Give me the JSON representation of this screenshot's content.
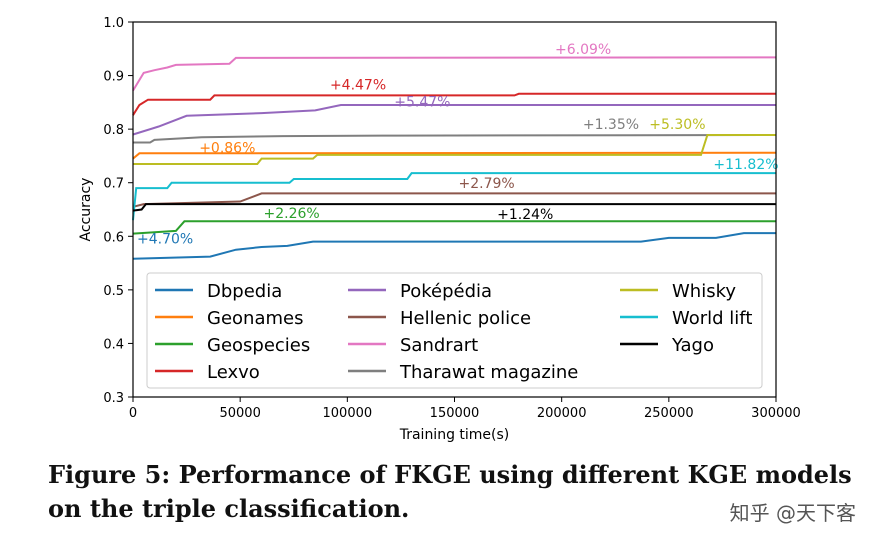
{
  "chart_data": {
    "type": "line",
    "title": "",
    "xlabel": "Training time(s)",
    "ylabel": "Accuracy",
    "xlim": [
      0,
      300000
    ],
    "ylim": [
      0.3,
      1.0
    ],
    "xticks": [
      0,
      50000,
      100000,
      150000,
      200000,
      250000,
      300000
    ],
    "yticks": [
      0.3,
      0.4,
      0.5,
      0.6,
      0.7,
      0.8,
      0.9,
      1.0
    ],
    "grid": false,
    "legend_placement": "lower-center",
    "series": [
      {
        "name": "Dbpedia",
        "color": "#1f77b4",
        "x": [
          0,
          36000,
          48000,
          60000,
          72000,
          84000,
          237000,
          250000,
          272000,
          285000,
          300000
        ],
        "y": [
          0.558,
          0.562,
          0.575,
          0.58,
          0.582,
          0.59,
          0.59,
          0.597,
          0.597,
          0.606,
          0.606
        ]
      },
      {
        "name": "Geonames",
        "color": "#ff7f0e",
        "x": [
          0,
          3000,
          300000
        ],
        "y": [
          0.745,
          0.755,
          0.756
        ]
      },
      {
        "name": "Geospecies",
        "color": "#2ca02c",
        "x": [
          0,
          20000,
          24000,
          300000
        ],
        "y": [
          0.605,
          0.61,
          0.628,
          0.628
        ]
      },
      {
        "name": "Lexvo",
        "color": "#d62728",
        "x": [
          0,
          3000,
          7000,
          36000,
          38000,
          178000,
          180000,
          300000
        ],
        "y": [
          0.826,
          0.845,
          0.855,
          0.855,
          0.863,
          0.863,
          0.866,
          0.866
        ]
      },
      {
        "name": "Poképédia",
        "color": "#9467bd",
        "x": [
          0,
          12000,
          25000,
          60000,
          85000,
          97000,
          300000
        ],
        "y": [
          0.79,
          0.805,
          0.825,
          0.83,
          0.835,
          0.845,
          0.845
        ]
      },
      {
        "name": "Hellenic police",
        "color": "#8c564b",
        "x": [
          0,
          5000,
          50000,
          60000,
          300000
        ],
        "y": [
          0.655,
          0.66,
          0.665,
          0.68,
          0.68
        ]
      },
      {
        "name": "Sandrart",
        "color": "#e377c2",
        "x": [
          0,
          5000,
          10000,
          16000,
          20000,
          45000,
          48000,
          300000
        ],
        "y": [
          0.872,
          0.905,
          0.91,
          0.915,
          0.92,
          0.922,
          0.933,
          0.934
        ]
      },
      {
        "name": "Tharawat magazine",
        "color": "#7f7f7f",
        "x": [
          0,
          8000,
          10000,
          32000,
          70000,
          122000,
          300000
        ],
        "y": [
          0.775,
          0.775,
          0.78,
          0.785,
          0.787,
          0.788,
          0.789
        ]
      },
      {
        "name": "Whisky",
        "color": "#bcbd22",
        "x": [
          0,
          58000,
          60000,
          84000,
          86000,
          265000,
          268000,
          300000
        ],
        "y": [
          0.735,
          0.735,
          0.745,
          0.745,
          0.752,
          0.752,
          0.789,
          0.789
        ]
      },
      {
        "name": "World lift",
        "color": "#17becf",
        "x": [
          0,
          1500,
          16000,
          18000,
          73000,
          75000,
          128000,
          130000,
          300000
        ],
        "y": [
          0.63,
          0.69,
          0.69,
          0.7,
          0.7,
          0.707,
          0.707,
          0.718,
          0.718
        ]
      },
      {
        "name": "Yago",
        "color": "#000000",
        "x": [
          0,
          4000,
          6000,
          300000
        ],
        "y": [
          0.648,
          0.65,
          0.66,
          0.66
        ]
      }
    ],
    "annotations": [
      {
        "text": "+6.09%",
        "color": "#e377c2",
        "x": 210000,
        "y": 0.94
      },
      {
        "text": "+4.47%",
        "color": "#d62728",
        "x": 105000,
        "y": 0.874
      },
      {
        "text": "+5.47%",
        "color": "#9467bd",
        "x": 135000,
        "y": 0.842
      },
      {
        "text": "+1.35%",
        "color": "#7f7f7f",
        "x": 223000,
        "y": 0.8
      },
      {
        "text": "+5.30%",
        "color": "#bcbd22",
        "x": 254000,
        "y": 0.8
      },
      {
        "text": "+0.86%",
        "color": "#ff7f0e",
        "x": 44000,
        "y": 0.756
      },
      {
        "text": "+11.82%",
        "color": "#17becf",
        "x": 286000,
        "y": 0.726
      },
      {
        "text": "+2.79%",
        "color": "#8c564b",
        "x": 165000,
        "y": 0.69
      },
      {
        "text": "+2.26%",
        "color": "#2ca02c",
        "x": 74000,
        "y": 0.634
      },
      {
        "text": "+1.24%",
        "color": "#000000",
        "x": 183000,
        "y": 0.632
      },
      {
        "text": "+4.70%",
        "color": "#1f77b4",
        "x": 15000,
        "y": 0.587
      }
    ]
  },
  "caption": "Figure 5: Performance of FKGE using different KGE models\non the triple classification.",
  "watermark": "知乎 @天下客"
}
